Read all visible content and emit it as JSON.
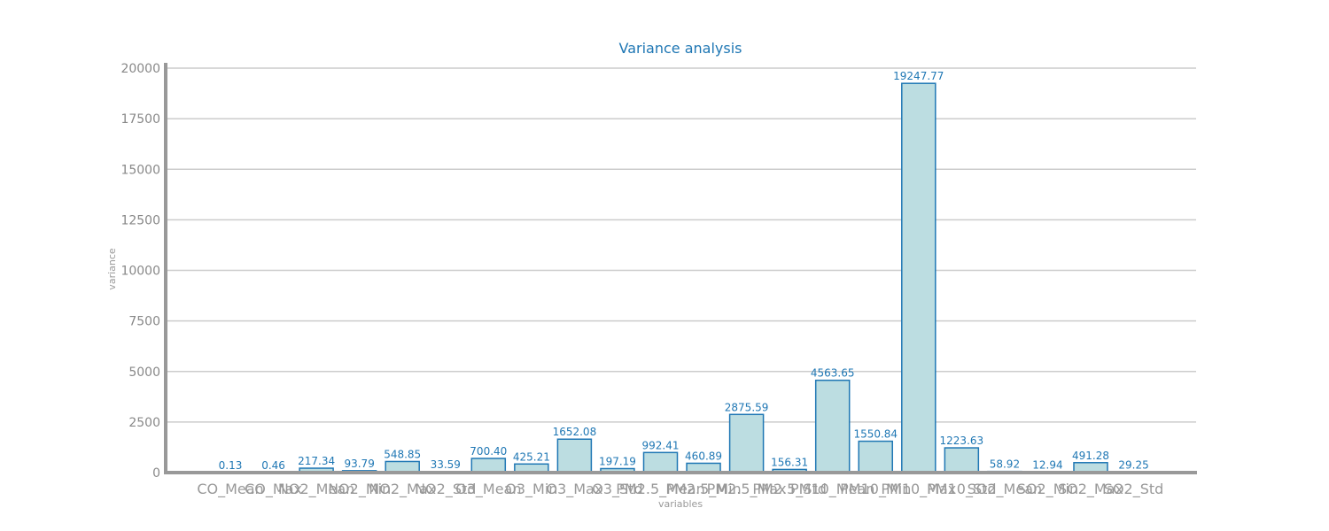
{
  "chart_data": {
    "type": "bar",
    "title": "Variance analysis",
    "xlabel": "variables",
    "ylabel": "variance",
    "ylim": [
      0,
      20000
    ],
    "yticks": [
      0,
      2500,
      5000,
      7500,
      10000,
      12500,
      15000,
      17500,
      20000
    ],
    "grid": "horizontal",
    "categories": [
      "CO_Mean",
      "CO_Max",
      "NO2_Mean",
      "NO2_Min",
      "NO2_Max",
      "NO2_Std",
      "O3_Mean",
      "O3_Min",
      "O3_Max",
      "O3_Std",
      "PM2.5_Mean",
      "PM2.5_Min",
      "PM2.5_Max",
      "PM2.5_Std",
      "PM10_Mean",
      "PM10_Min",
      "PM10_Max",
      "PM10_Std",
      "SO2_Mean",
      "SO2_Min",
      "SO2_Max",
      "SO2_Std"
    ],
    "values": [
      0.13,
      0.46,
      217.34,
      93.79,
      548.85,
      33.59,
      700.4,
      425.21,
      1652.08,
      197.19,
      992.41,
      460.89,
      2875.59,
      156.31,
      4563.65,
      1550.84,
      19247.77,
      1223.63,
      58.92,
      12.94,
      491.28,
      29.25
    ],
    "value_labels": [
      "0.13",
      "0.46",
      "217.34",
      "93.79",
      "548.85",
      "33.59",
      "700.40",
      "425.21",
      "1652.08",
      "197.19",
      "992.41",
      "460.89",
      "2875.59",
      "156.31",
      "4563.65",
      "1550.84",
      "19247.77",
      "1223.63",
      "58.92",
      "12.94",
      "491.28",
      "29.25"
    ],
    "colors": {
      "bar_fill": "#bcdde1",
      "bar_edge": "#1f77b4",
      "title": "#1f77b4",
      "labels": "#1f77b4",
      "axis": "#999999",
      "grid": "#cccccc"
    }
  }
}
